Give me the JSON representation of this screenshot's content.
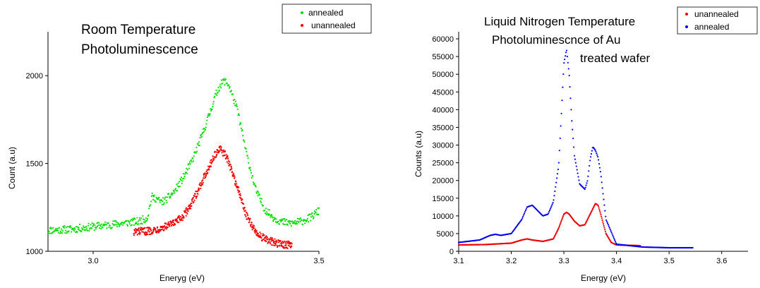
{
  "chart_data": [
    {
      "type": "scatter",
      "title_lines": [
        "Room Temperature",
        "Photoluminescence"
      ],
      "xlabel": "Eneryg (eV)",
      "ylabel": "Count (a.u)",
      "xlim": [
        2.9,
        3.5
      ],
      "ylim": [
        1000,
        2250
      ],
      "x_ticks": [
        {
          "value": 3.0,
          "label": "3.0"
        },
        {
          "value": 3.5,
          "label": "3.5"
        }
      ],
      "y_ticks": [
        {
          "value": 1000,
          "label": "1000"
        },
        {
          "value": 1500,
          "label": "1500"
        },
        {
          "value": 2000,
          "label": "2000"
        }
      ],
      "legend_position": "top-right",
      "legend": [
        "annealed",
        "unannealed"
      ],
      "series": [
        {
          "name": "annealed",
          "color": "#00dd00",
          "x": [
            2.9,
            2.95,
            3.0,
            3.05,
            3.1,
            3.12,
            3.13,
            3.14,
            3.15,
            3.16,
            3.18,
            3.2,
            3.22,
            3.24,
            3.26,
            3.27,
            3.28,
            3.29,
            3.3,
            3.32,
            3.34,
            3.36,
            3.38,
            3.4,
            3.42,
            3.44,
            3.46,
            3.48,
            3.5
          ],
          "y": [
            1120,
            1125,
            1140,
            1155,
            1170,
            1190,
            1310,
            1300,
            1280,
            1290,
            1340,
            1420,
            1520,
            1650,
            1800,
            1880,
            1940,
            1970,
            1950,
            1800,
            1550,
            1350,
            1240,
            1190,
            1165,
            1160,
            1170,
            1190,
            1230
          ]
        },
        {
          "name": "unannealed",
          "color": "#ee0000",
          "x": [
            3.09,
            3.12,
            3.14,
            3.16,
            3.18,
            3.2,
            3.22,
            3.24,
            3.26,
            3.27,
            3.28,
            3.29,
            3.3,
            3.32,
            3.34,
            3.36,
            3.38,
            3.4,
            3.42,
            3.44
          ],
          "y": [
            1110,
            1115,
            1125,
            1140,
            1160,
            1200,
            1280,
            1390,
            1500,
            1550,
            1580,
            1560,
            1510,
            1360,
            1200,
            1110,
            1070,
            1050,
            1040,
            1035
          ]
        }
      ]
    },
    {
      "type": "scatter",
      "title_lines": [
        "Liquid Nitrogen Temperature",
        "Photoluminescnce of Au",
        "treated wafer"
      ],
      "xlabel": "Energy  (eV)",
      "ylabel": "Counts (a.u)",
      "xlim": [
        3.1,
        3.65
      ],
      "ylim": [
        0,
        62000
      ],
      "x_ticks": [
        {
          "value": 3.1,
          "label": "3.1"
        },
        {
          "value": 3.2,
          "label": "3.2"
        },
        {
          "value": 3.3,
          "label": "3.3"
        },
        {
          "value": 3.4,
          "label": "3.4"
        },
        {
          "value": 3.5,
          "label": "3.5"
        },
        {
          "value": 3.6,
          "label": "3.6"
        }
      ],
      "y_ticks": [
        {
          "value": 0,
          "label": "0"
        },
        {
          "value": 5000,
          "label": "5000"
        },
        {
          "value": 10000,
          "label": "10000"
        },
        {
          "value": 15000,
          "label": "15000"
        },
        {
          "value": 20000,
          "label": "20000"
        },
        {
          "value": 25000,
          "label": "25000"
        },
        {
          "value": 30000,
          "label": "30000"
        },
        {
          "value": 35000,
          "label": "35000"
        },
        {
          "value": 40000,
          "label": "40000"
        },
        {
          "value": 45000,
          "label": "45000"
        },
        {
          "value": 50000,
          "label": "50000"
        },
        {
          "value": 55000,
          "label": "55000"
        },
        {
          "value": 60000,
          "label": "60000"
        }
      ],
      "legend_position": "top-right",
      "legend": [
        "unannealed",
        "annealed"
      ],
      "series": [
        {
          "name": "unannealed",
          "color": "#ee0000",
          "x": [
            3.1,
            3.15,
            3.2,
            3.22,
            3.23,
            3.24,
            3.26,
            3.28,
            3.29,
            3.3,
            3.305,
            3.31,
            3.32,
            3.33,
            3.34,
            3.35,
            3.36,
            3.365,
            3.37,
            3.38,
            3.39,
            3.4,
            3.42,
            3.445
          ],
          "y": [
            1800,
            1900,
            2300,
            3200,
            3500,
            3200,
            2800,
            3500,
            6500,
            10500,
            11000,
            10500,
            8500,
            7200,
            7500,
            10500,
            13500,
            13000,
            10500,
            5000,
            2500,
            1800,
            1700,
            1600
          ]
        },
        {
          "name": "annealed",
          "color": "#0000ee",
          "x": [
            3.1,
            3.14,
            3.16,
            3.17,
            3.18,
            3.2,
            3.22,
            3.23,
            3.24,
            3.25,
            3.26,
            3.27,
            3.28,
            3.29,
            3.295,
            3.3,
            3.305,
            3.31,
            3.315,
            3.32,
            3.33,
            3.34,
            3.345,
            3.35,
            3.355,
            3.36,
            3.365,
            3.37,
            3.38,
            3.4,
            3.45,
            3.5,
            3.545
          ],
          "y": [
            2500,
            3200,
            4500,
            4800,
            4500,
            5000,
            9000,
            12500,
            13000,
            11500,
            10000,
            10500,
            14000,
            24000,
            38000,
            53000,
            57000,
            50000,
            37000,
            27000,
            19000,
            17500,
            20000,
            26000,
            29500,
            28500,
            26500,
            22000,
            9000,
            2000,
            1200,
            1000,
            1000
          ]
        }
      ]
    }
  ]
}
